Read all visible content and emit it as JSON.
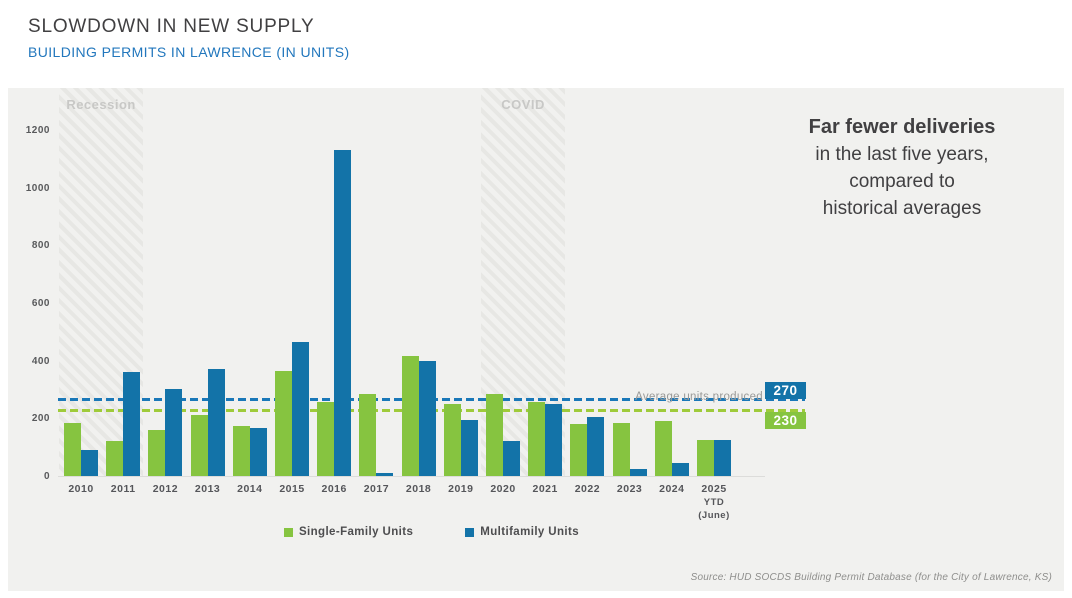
{
  "header": {
    "title": "SLOWDOWN IN NEW SUPPLY",
    "subtitle": "BUILDING PERMITS IN LAWRENCE (IN UNITS)"
  },
  "annotation": {
    "line1": "Far fewer deliveries",
    "line2": "in the last five years,",
    "line3": "compared to",
    "line4": "historical averages"
  },
  "chart_data": {
    "type": "bar",
    "title": "Building permits in Lawrence (in units)",
    "categories": [
      "2010",
      "2011",
      "2012",
      "2013",
      "2014",
      "2015",
      "2016",
      "2017",
      "2018",
      "2019",
      "2020",
      "2021",
      "2022",
      "2023",
      "2024",
      "2025"
    ],
    "last_category_sub": [
      "YTD",
      "(June)"
    ],
    "series": [
      {
        "name": "Single-Family Units",
        "color": "#86c440",
        "values": [
          185,
          120,
          160,
          210,
          175,
          365,
          255,
          285,
          415,
          250,
          285,
          255,
          180,
          185,
          190,
          125
        ]
      },
      {
        "name": "Multifamily Units",
        "color": "#1373a8",
        "values": [
          90,
          360,
          300,
          370,
          165,
          465,
          1130,
          10,
          400,
          195,
          120,
          250,
          205,
          25,
          45,
          125
        ]
      }
    ],
    "ylim": [
      0,
      1350
    ],
    "yticks": [
      0,
      200,
      400,
      600,
      800,
      1000,
      1200
    ],
    "grid": false,
    "legend_position": "bottom",
    "reference_caption": "Average units produced",
    "reference_lines": [
      {
        "label": "270",
        "value": 270,
        "series": "Multifamily Units",
        "color": "#1373a8"
      },
      {
        "label": "230",
        "value": 230,
        "series": "Single-Family Units",
        "color": "#86c440"
      }
    ],
    "bands": [
      {
        "label": "Recession",
        "from_year": "2010",
        "to_year": "2011"
      },
      {
        "label": "COVID",
        "from_year": "2020",
        "to_year": "2021"
      }
    ]
  },
  "source": "Source: HUD SOCDS Building Permit Database (for the City of Lawrence, KS)"
}
